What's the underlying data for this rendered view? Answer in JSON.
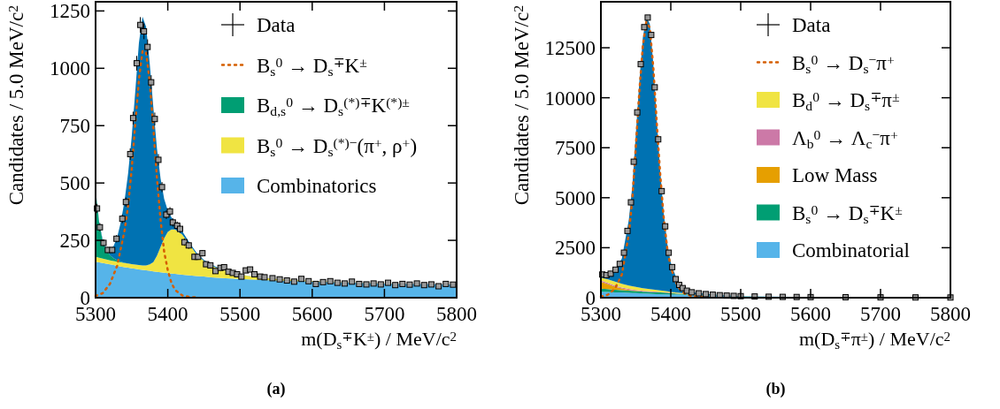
{
  "chart_data": [
    {
      "type": "area",
      "stacked": true,
      "legend": "top right",
      "xlabel": "m(D$_{s}$$^{∓}$K$^{±}$) / MeV/c$^{2}$",
      "ylabel": "Candidates / 5.0 MeV/c$^{2}$",
      "annotations": [
        "(a)"
      ],
      "xlim": [
        5300,
        5800
      ],
      "ylim": [
        0,
        1290
      ],
      "xticks": [
        5300,
        5400,
        5500,
        5600,
        5700,
        5800
      ],
      "yticks": [
        0,
        250,
        500,
        750,
        1000,
        1250
      ],
      "x": [
        5300,
        5305,
        5310,
        5315,
        5320,
        5325,
        5330,
        5335,
        5340,
        5345,
        5350,
        5355,
        5360,
        5365,
        5370,
        5375,
        5380,
        5385,
        5390,
        5395,
        5400,
        5405,
        5410,
        5420,
        5430,
        5440,
        5450,
        5460,
        5470,
        5480,
        5500,
        5525,
        5550,
        5600,
        5650,
        5700,
        5750,
        5800
      ],
      "series": [
        {
          "name": "Combinatorics",
          "color": "#56b4e9",
          "values": [
            157,
            154,
            151,
            148,
            145,
            142,
            139,
            136,
            133,
            131,
            128,
            126,
            123,
            121,
            119,
            117,
            115,
            113,
            111,
            109,
            107,
            105,
            104,
            100,
            97,
            94,
            92,
            89,
            87,
            85,
            82,
            78,
            75,
            70,
            66,
            62,
            59,
            57
          ]
        },
        {
          "name": "B$_{s}$$^{0}$ → D$_{s}$$^{(*)−}$(π$^{+}$, ρ$^{+}$)",
          "color": "#f0e442",
          "values": [
            21,
            20,
            19,
            19,
            18,
            18,
            18,
            18,
            18,
            18,
            18,
            18,
            19,
            20,
            22,
            28,
            40,
            70,
            110,
            150,
            180,
            192,
            193,
            175,
            135,
            95,
            68,
            52,
            40,
            32,
            18,
            11,
            7,
            3,
            1,
            1,
            0,
            0
          ]
        },
        {
          "name": "B$_{d,s}$$^{0}$ → D$_{s}$$^{(*)∓}$K$^{(*)±}$",
          "color": "#009e73",
          "values": [
            290,
            150,
            75,
            40,
            22,
            12,
            6,
            3,
            1,
            0,
            0,
            0,
            0,
            0,
            0,
            0,
            0,
            0,
            0,
            0,
            0,
            0,
            0,
            0,
            0,
            0,
            0,
            0,
            0,
            0,
            0,
            0,
            0,
            0,
            0,
            0,
            0,
            0
          ]
        },
        {
          "color": "#0072b2",
          "values": [
            3,
            6,
            5,
            8,
            25,
            53,
            102,
            173,
            268,
            391,
            554,
            756,
            968,
            1084,
            1039,
            875,
            675,
            467,
            299,
            171,
            93,
            53,
            33,
            15,
            8,
            6,
            5,
            4,
            3,
            1,
            0,
            1,
            0,
            0,
            0,
            0,
            1,
            0
          ]
        },
        {
          "name": "B$_{s}$$^{0}$ → D$_{s}$$^{∓}$K$^{±}$",
          "type": "line",
          "line_style": "dotted",
          "color": "#d55e00",
          "x": [
            5300,
            5310,
            5320,
            5330,
            5340,
            5345,
            5350,
            5355,
            5360,
            5365,
            5370,
            5375,
            5380,
            5385,
            5390,
            5395,
            5400,
            5405,
            5410,
            5420,
            5430,
            5440
          ],
          "values": [
            7,
            20,
            61,
            140,
            290,
            400,
            560,
            760,
            950,
            1075,
            1070,
            940,
            740,
            520,
            340,
            200,
            120,
            65,
            34,
            10,
            3,
            1
          ]
        },
        {
          "name": "Data",
          "type": "scatter",
          "marker": "square",
          "color": "#000000",
          "x": [
            5302,
            5306,
            5311,
            5317,
            5323,
            5329,
            5337,
            5342,
            5348,
            5352,
            5357,
            5362,
            5367,
            5372,
            5377,
            5382,
            5387,
            5392,
            5398,
            5403,
            5407,
            5413,
            5417,
            5423,
            5429,
            5437,
            5442,
            5448,
            5453,
            5459,
            5466,
            5473,
            5478,
            5484,
            5490,
            5496,
            5502,
            5508,
            5514,
            5520,
            5528,
            5534,
            5545,
            5555,
            5565,
            5575,
            5585,
            5595,
            5605,
            5615,
            5625,
            5635,
            5645,
            5655,
            5665,
            5675,
            5685,
            5695,
            5705,
            5715,
            5725,
            5735,
            5745,
            5755,
            5765,
            5775,
            5785,
            5795
          ],
          "values": [
            389,
            307,
            239,
            208,
            208,
            257,
            344,
            417,
            626,
            783,
            1022,
            1189,
            1161,
            1093,
            939,
            779,
            601,
            482,
            362,
            376,
            328,
            314,
            300,
            242,
            228,
            178,
            178,
            194,
            146,
            141,
            116,
            130,
            133,
            113,
            108,
            102,
            92,
            119,
            123,
            102,
            92,
            89,
            85,
            80,
            75,
            70,
            82,
            72,
            60,
            68,
            72,
            65,
            62,
            70,
            60,
            58,
            62,
            58,
            65,
            55,
            60,
            57,
            62,
            55,
            58,
            50,
            60,
            57
          ],
          "errors": [
            20,
            18,
            15,
            14,
            14,
            16,
            19,
            20,
            25,
            28,
            32,
            34,
            34,
            33,
            31,
            28,
            25,
            22,
            19,
            19,
            18,
            18,
            17,
            16,
            15,
            13,
            13,
            14,
            12,
            12,
            11,
            11,
            12,
            11,
            10,
            10,
            10,
            11,
            11,
            10,
            10,
            9,
            9,
            9,
            9,
            8,
            9,
            8,
            8,
            8,
            8,
            8,
            8,
            8,
            8,
            8,
            8,
            8,
            8,
            7,
            8,
            8,
            8,
            7,
            8,
            7,
            8,
            8
          ],
          "xerrors": [
            2.5,
            2.5,
            2.5,
            2.5,
            2.5,
            2.5,
            2.5,
            2.5,
            2.5,
            2.5,
            2.5,
            2.5,
            2.5,
            2.5,
            2.5,
            2.5,
            2.5,
            2.5,
            2.5,
            2.5,
            2.5,
            2.5,
            2.5,
            2.5,
            2.5,
            2.5,
            2.5,
            2.5,
            2.5,
            2.5,
            2.5,
            2.5,
            2.5,
            2.5,
            2.5,
            2.5,
            2.5,
            2.5,
            2.5,
            2.5,
            2.5,
            2.5,
            2.5,
            2.5,
            2.5,
            2.5,
            2.5,
            2.5,
            2.5,
            2.5,
            2.5,
            2.5,
            2.5,
            2.5,
            2.5,
            2.5,
            2.5,
            2.5,
            2.5,
            2.5,
            2.5,
            2.5,
            2.5,
            2.5,
            2.5,
            2.5,
            2.5,
            2.5
          ]
        }
      ]
    },
    {
      "type": "area",
      "stacked": true,
      "legend": "top right",
      "xlabel": "m(D$_{s}$$^{∓}$π$^{±}$) / MeV/c$^{2}$",
      "ylabel": "Candidates / 5.0 MeV/c$^{2}$",
      "annotations": [
        "(b)"
      ],
      "xlim": [
        5300,
        5800
      ],
      "ylim": [
        0,
        14800
      ],
      "xticks": [
        5300,
        5400,
        5500,
        5600,
        5700,
        5800
      ],
      "yticks": [
        0,
        2500,
        5000,
        7500,
        10000,
        12500
      ],
      "x": [
        5300,
        5310,
        5320,
        5330,
        5340,
        5345,
        5350,
        5355,
        5360,
        5365,
        5370,
        5375,
        5380,
        5385,
        5390,
        5395,
        5400,
        5410,
        5420,
        5430,
        5450,
        5475,
        5500,
        5550,
        5600,
        5700,
        5800
      ],
      "series": [
        {
          "name": "Combinatorial",
          "color": "#56b4e9",
          "values": [
            300,
            290,
            270,
            260,
            240,
            230,
            230,
            220,
            210,
            210,
            200,
            190,
            180,
            180,
            170,
            170,
            160,
            150,
            140,
            130,
            110,
            90,
            70,
            50,
            30,
            10,
            10
          ]
        },
        {
          "name": "B$_{s}$$^{0}$ → D$_{s}$$^{∓}$K$^{±}$",
          "color": "#009e73",
          "values": [
            150,
            140,
            130,
            120,
            110,
            110,
            100,
            100,
            90,
            90,
            90,
            90,
            90,
            80,
            80,
            70,
            60,
            50,
            40,
            30,
            20,
            10,
            10,
            0,
            0,
            0,
            0
          ]
        },
        {
          "name": "Low Mass",
          "color": "#e69f00",
          "values": [
            350,
            250,
            150,
            80,
            40,
            30,
            20,
            10,
            0,
            0,
            0,
            0,
            0,
            0,
            0,
            0,
            0,
            0,
            0,
            0,
            0,
            0,
            0,
            0,
            0,
            0,
            0
          ]
        },
        {
          "name": "Λ$_{b}$$^{0}$ → Λ$_{c}$$^{−}$π$^{+}$",
          "color": "#cc79a7",
          "values": [
            60,
            60,
            60,
            50,
            50,
            40,
            40,
            40,
            40,
            30,
            30,
            30,
            30,
            20,
            20,
            20,
            20,
            10,
            10,
            10,
            0,
            0,
            0,
            0,
            0,
            0,
            0
          ]
        },
        {
          "name": "B$_{d}$$^{0}$ → D$_{s}$$^{∓}$π$^{±}$",
          "color": "#f0e442",
          "values": [
            150,
            180,
            200,
            190,
            170,
            160,
            150,
            140,
            130,
            120,
            110,
            100,
            90,
            80,
            70,
            60,
            50,
            40,
            20,
            10,
            10,
            0,
            0,
            0,
            0,
            0,
            0
          ]
        },
        {
          "color": "#0072b2",
          "values": [
            140,
            220,
            540,
            1250,
            3290,
            5030,
            7660,
            10290,
            12530,
            13600,
            13270,
            11290,
            8510,
            5940,
            3860,
            2380,
            1460,
            530,
            210,
            100,
            50,
            20,
            0,
            0,
            0,
            10,
            0
          ]
        },
        {
          "name": "B$_{s}$$^{0}$ → D$_{s}$$^{−}$π$^{+}$",
          "type": "line",
          "line_style": "dotted",
          "color": "#d55e00",
          "values": [
            50,
            150,
            450,
            1150,
            3200,
            4950,
            7600,
            10300,
            12600,
            13800,
            13500,
            11500,
            8700,
            6100,
            3950,
            2450,
            1500,
            550,
            200,
            80,
            20,
            null,
            null,
            null,
            null,
            null,
            null
          ]
        },
        {
          "name": "Data",
          "type": "scatter",
          "marker": "square",
          "color": "#000000",
          "x": [
            5302,
            5308,
            5314,
            5321,
            5327,
            5333,
            5338,
            5343,
            5347,
            5352,
            5357,
            5362,
            5367,
            5372,
            5377,
            5382,
            5387,
            5392,
            5397,
            5402,
            5407,
            5412,
            5417,
            5423,
            5430,
            5440,
            5450,
            5460,
            5470,
            5480,
            5490,
            5500,
            5520,
            5540,
            5560,
            5580,
            5600,
            5650,
            5700,
            5750,
            5800
          ],
          "values": [
            1160,
            1130,
            1200,
            1400,
            1690,
            2250,
            3340,
            4770,
            6800,
            9270,
            11680,
            13530,
            14010,
            13140,
            10520,
            7920,
            5330,
            3570,
            2250,
            1530,
            930,
            640,
            480,
            350,
            270,
            220,
            180,
            150,
            125,
            105,
            90,
            78,
            60,
            48,
            40,
            35,
            30,
            22,
            17,
            13,
            10
          ],
          "errors": [
            34,
            34,
            35,
            37,
            41,
            47,
            58,
            69,
            82,
            96,
            108,
            116,
            118,
            115,
            103,
            89,
            73,
            60,
            47,
            39,
            30,
            25,
            22,
            19,
            16,
            15,
            13,
            12,
            11,
            10,
            9,
            9,
            8,
            7,
            6,
            6,
            5,
            5,
            4,
            4,
            3
          ],
          "xerrors": [
            2.5,
            2.5,
            2.5,
            2.5,
            2.5,
            2.5,
            2.5,
            2.5,
            2.5,
            2.5,
            2.5,
            2.5,
            2.5,
            2.5,
            2.5,
            2.5,
            2.5,
            2.5,
            2.5,
            2.5,
            2.5,
            2.5,
            2.5,
            2.5,
            2.5,
            2.5,
            2.5,
            2.5,
            2.5,
            2.5,
            2.5,
            2.5,
            2.5,
            2.5,
            2.5,
            2.5,
            2.5,
            2.5,
            2.5,
            2.5,
            2.5
          ]
        }
      ]
    }
  ]
}
